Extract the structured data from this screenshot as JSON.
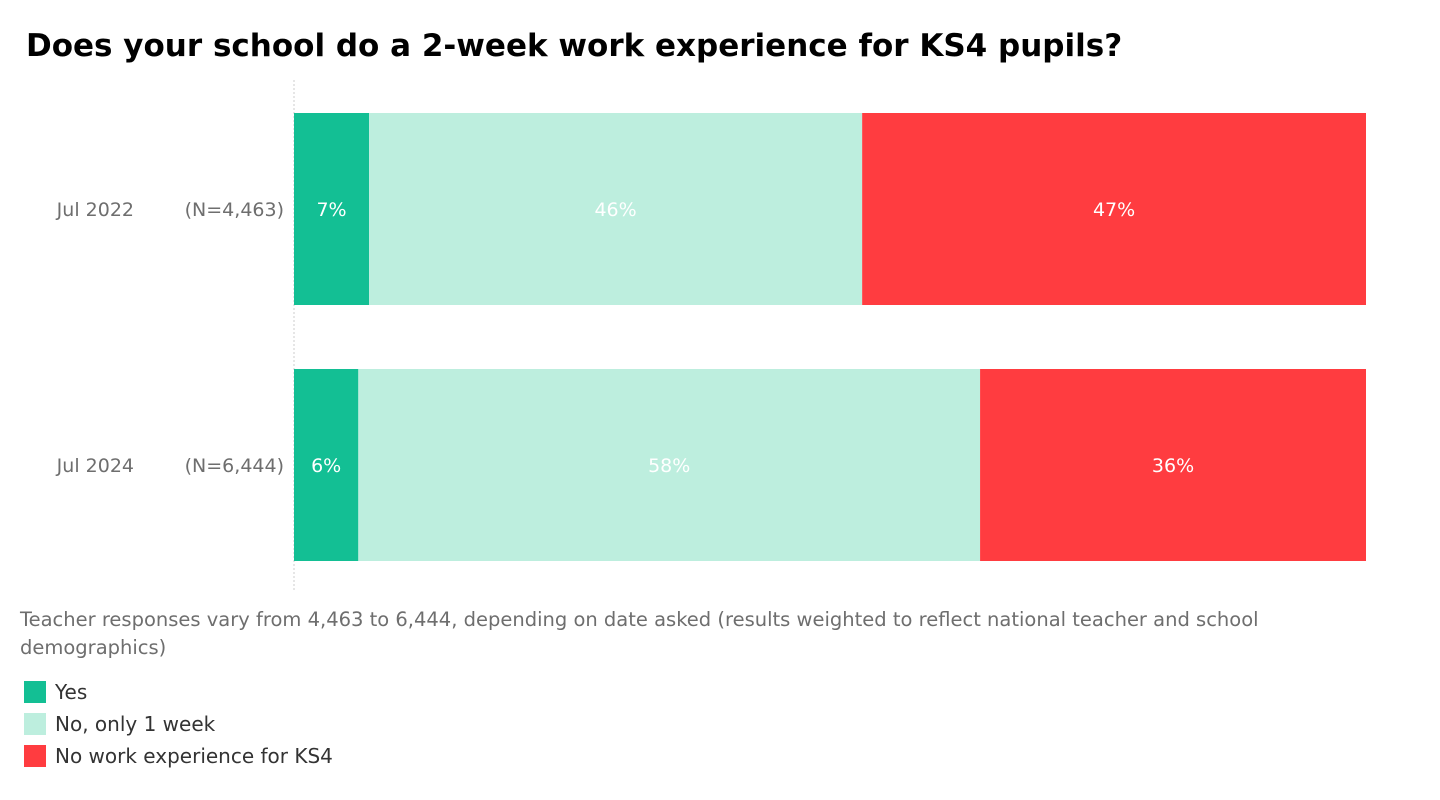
{
  "title": "Does your school do a 2-week work experience for KS4 pupils?",
  "note": "Teacher responses vary from 4,463 to 6,444, depending on date asked (results weighted to reflect national teacher and school demographics)",
  "chart_data": {
    "type": "bar",
    "stacked": true,
    "orientation": "horizontal",
    "title": "Does your school do a 2-week work experience for KS4 pupils?",
    "categories": [
      "Jul 2022",
      "Jul 2024"
    ],
    "sample_sizes": [
      "(N=4,463)",
      "(N=6,444)"
    ],
    "xlim": [
      0,
      100
    ],
    "series": [
      {
        "name": "Yes",
        "color": "#13bf94",
        "values": [
          7,
          6
        ],
        "labels": [
          "7%",
          "6%"
        ]
      },
      {
        "name": "No, only 1 week",
        "color": "#bdeede",
        "values": [
          46,
          58
        ],
        "labels": [
          "46%",
          "58%"
        ]
      },
      {
        "name": "No work experience for KS4",
        "color": "#ff3c40",
        "values": [
          47,
          36
        ],
        "labels": [
          "47%",
          "36%"
        ]
      }
    ],
    "legend_position": "bottom-left"
  }
}
